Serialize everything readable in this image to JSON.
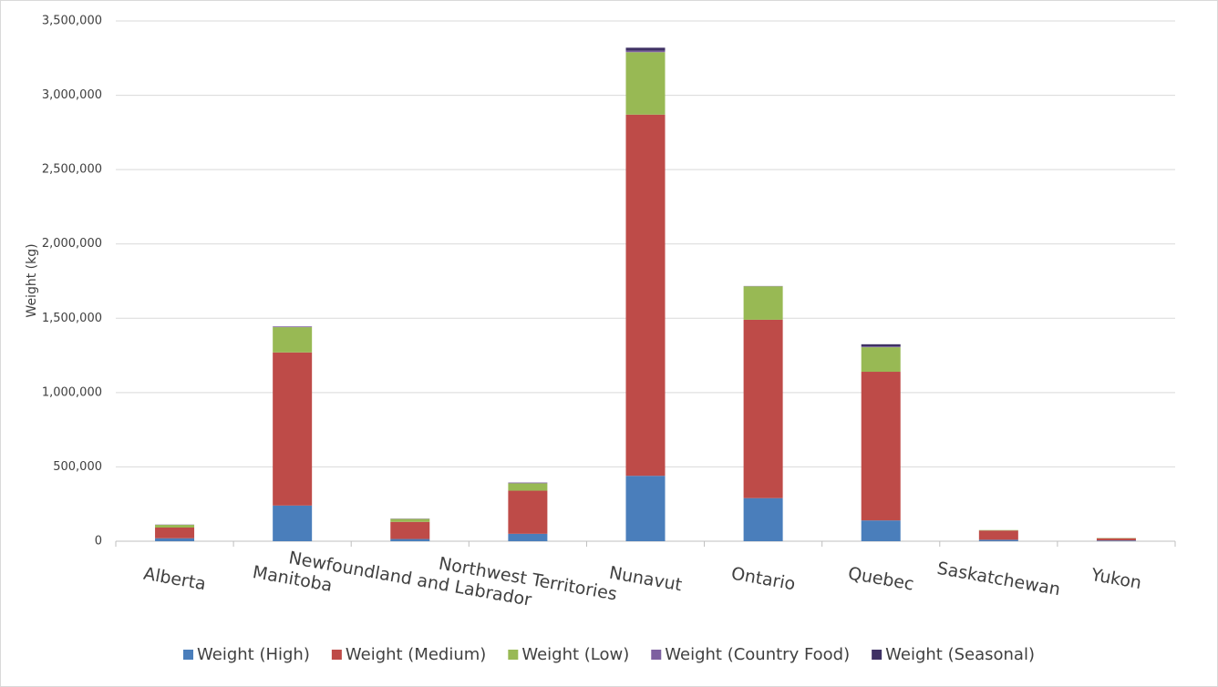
{
  "chart_data": {
    "type": "stacked_bar",
    "y_label": "Weight (kg)",
    "categories": [
      "Alberta",
      "Manitoba",
      "Newfoundland and Labrador",
      "Northwest Territories",
      "Nunavut",
      "Ontario",
      "Quebec",
      "Saskatchewan",
      "Yukon"
    ],
    "series": [
      {
        "name": "Weight (High)",
        "color": "#4a7ebb",
        "values": [
          20000,
          240000,
          15000,
          50000,
          440000,
          290000,
          140000,
          10000,
          5000
        ]
      },
      {
        "name": "Weight (Medium)",
        "color": "#be4b48",
        "values": [
          72000,
          1030000,
          115000,
          290000,
          2430000,
          1200000,
          1000000,
          62000,
          15000
        ]
      },
      {
        "name": "Weight (Low)",
        "color": "#98b954",
        "values": [
          18000,
          170000,
          20000,
          50000,
          420000,
          225000,
          165000,
          3000,
          2000
        ]
      },
      {
        "name": "Weight (Country Food)",
        "color": "#7d60a0",
        "values": [
          2000,
          5000,
          2000,
          5000,
          10000,
          2000,
          5000,
          0,
          0
        ]
      },
      {
        "name": "Weight (Seasonal)",
        "color": "#3f3164",
        "values": [
          0,
          0,
          0,
          0,
          20000,
          0,
          15000,
          0,
          0
        ]
      }
    ],
    "ylim": [
      0,
      3500000
    ],
    "yticks": [
      0,
      {
        "value": 500000,
        "label": "500,000"
      },
      {
        "value": 1000000,
        "label": "1,000,000"
      },
      {
        "value": 1500000,
        "label": "1,500,000"
      },
      {
        "value": 2000000,
        "label": "2,000,000"
      },
      {
        "value": 2500000,
        "label": "2,500,000"
      },
      {
        "value": 3000000,
        "label": "3,000,000"
      },
      {
        "value": 3500000,
        "label": "3,500,000"
      }
    ],
    "grid": true,
    "legend": "bottom"
  }
}
